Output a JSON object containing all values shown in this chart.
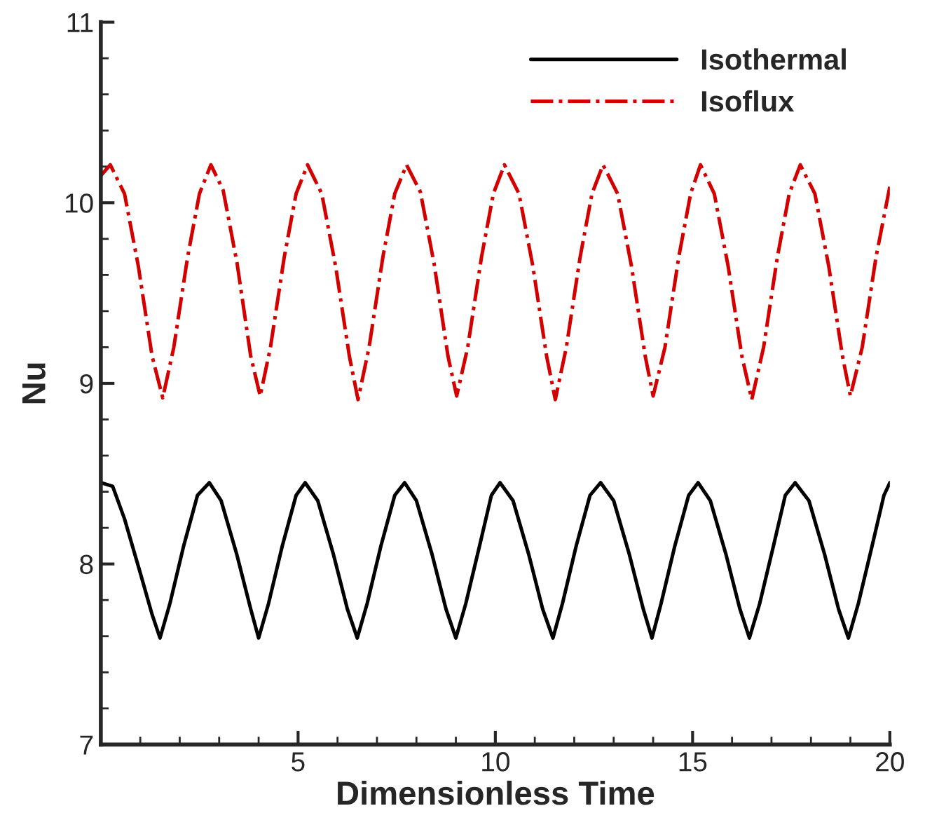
{
  "chart_data": {
    "type": "line",
    "xlabel": "Dimensionless Time",
    "ylabel": "Nu",
    "xlim": [
      0,
      20
    ],
    "xticks": [
      5,
      10,
      15,
      20
    ],
    "ylim": [
      7,
      11
    ],
    "yticks": [
      7,
      8,
      9,
      10,
      11
    ],
    "legend": "top right",
    "grid": false,
    "series": [
      {
        "name": "Isothermal",
        "color": "#000000",
        "line_style": "solid",
        "x": [
          0,
          0.3,
          0.6,
          1.0,
          1.3,
          1.5,
          1.75,
          2.1,
          2.45,
          2.75,
          3.05,
          3.45,
          3.8,
          4.0,
          4.25,
          4.6,
          4.95,
          5.18,
          5.5,
          5.9,
          6.25,
          6.5,
          6.75,
          7.1,
          7.45,
          7.7,
          8.0,
          8.4,
          8.75,
          9.0,
          9.25,
          9.6,
          9.9,
          10.12,
          10.45,
          10.85,
          11.2,
          11.46,
          11.7,
          12.05,
          12.4,
          12.67,
          13.0,
          13.4,
          13.75,
          13.97,
          14.2,
          14.55,
          14.9,
          15.14,
          15.45,
          15.85,
          16.2,
          16.44,
          16.7,
          17.05,
          17.35,
          17.6,
          17.95,
          18.35,
          18.7,
          18.95,
          19.2,
          19.55,
          19.85,
          20
        ],
        "values": [
          8.45,
          8.43,
          8.25,
          7.95,
          7.72,
          7.59,
          7.78,
          8.1,
          8.38,
          8.45,
          8.35,
          8.05,
          7.75,
          7.59,
          7.78,
          8.1,
          8.38,
          8.45,
          8.35,
          8.05,
          7.75,
          7.59,
          7.78,
          8.1,
          8.38,
          8.45,
          8.35,
          8.05,
          7.75,
          7.59,
          7.78,
          8.1,
          8.38,
          8.45,
          8.35,
          8.05,
          7.75,
          7.59,
          7.78,
          8.1,
          8.38,
          8.45,
          8.35,
          8.05,
          7.75,
          7.59,
          7.78,
          8.1,
          8.38,
          8.45,
          8.35,
          8.05,
          7.75,
          7.59,
          7.78,
          8.1,
          8.38,
          8.45,
          8.35,
          8.05,
          7.75,
          7.59,
          7.78,
          8.1,
          8.38,
          8.45
        ]
      },
      {
        "name": "Isoflux",
        "color": "#d40000",
        "line_style": "dashdot",
        "x": [
          0,
          0.24,
          0.6,
          0.95,
          1.3,
          1.57,
          1.85,
          2.2,
          2.5,
          2.79,
          3.1,
          3.45,
          3.8,
          4.04,
          4.3,
          4.65,
          4.95,
          5.24,
          5.6,
          5.95,
          6.3,
          6.52,
          6.8,
          7.15,
          7.45,
          7.75,
          8.1,
          8.45,
          8.8,
          9.02,
          9.3,
          9.65,
          9.95,
          10.23,
          10.6,
          10.95,
          11.3,
          11.52,
          11.8,
          12.15,
          12.45,
          12.73,
          13.1,
          13.45,
          13.8,
          14.0,
          14.3,
          14.65,
          14.95,
          15.2,
          15.55,
          15.9,
          16.25,
          16.5,
          16.8,
          17.15,
          17.45,
          17.73,
          18.1,
          18.45,
          18.8,
          19.0,
          19.3,
          19.65,
          20
        ],
        "values": [
          10.15,
          10.21,
          10.05,
          9.65,
          9.15,
          8.92,
          9.2,
          9.7,
          10.05,
          10.21,
          10.07,
          9.67,
          9.15,
          8.93,
          9.2,
          9.7,
          10.05,
          10.21,
          10.05,
          9.65,
          9.15,
          8.91,
          9.2,
          9.7,
          10.05,
          10.21,
          10.06,
          9.66,
          9.15,
          8.93,
          9.2,
          9.7,
          10.05,
          10.21,
          10.05,
          9.65,
          9.15,
          8.91,
          9.2,
          9.7,
          10.05,
          10.21,
          10.05,
          9.65,
          9.15,
          8.93,
          9.2,
          9.7,
          10.05,
          10.21,
          10.05,
          9.65,
          9.15,
          8.91,
          9.2,
          9.7,
          10.05,
          10.21,
          10.05,
          9.65,
          9.15,
          8.93,
          9.2,
          9.7,
          10.09
        ]
      }
    ]
  }
}
